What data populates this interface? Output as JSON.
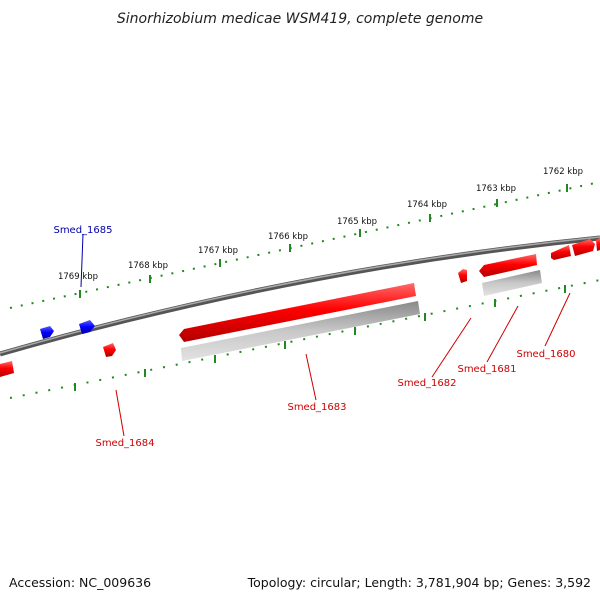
{
  "title": "Sinorhizobium medicae WSM419, complete genome",
  "accession": "Accession: NC_009636",
  "topology": "Topology: circular; Length: 3,781,904 bp; Genes: 3,592",
  "ruler_labels": [
    "1762 kbp",
    "1763 kbp",
    "1764 kbp",
    "1765 kbp",
    "1766 kbp",
    "1767 kbp",
    "1768 kbp",
    "1769 kbp"
  ],
  "genes": {
    "smed_1680": "Smed_1680",
    "smed_1681": "Smed_1681",
    "smed_1682": "Smed_1682",
    "smed_1683": "Smed_1683",
    "smed_1684": "Smed_1684",
    "smed_1685": "Smed_1685"
  },
  "colors": {
    "forward_gene": "#ee0000",
    "reverse_gene": "#0000ee",
    "pseudo_gene": "#aaaaaa",
    "ruler": "#228822",
    "backbone": "#777777",
    "label_red": "#cc0000",
    "label_blue": "#0000aa"
  }
}
